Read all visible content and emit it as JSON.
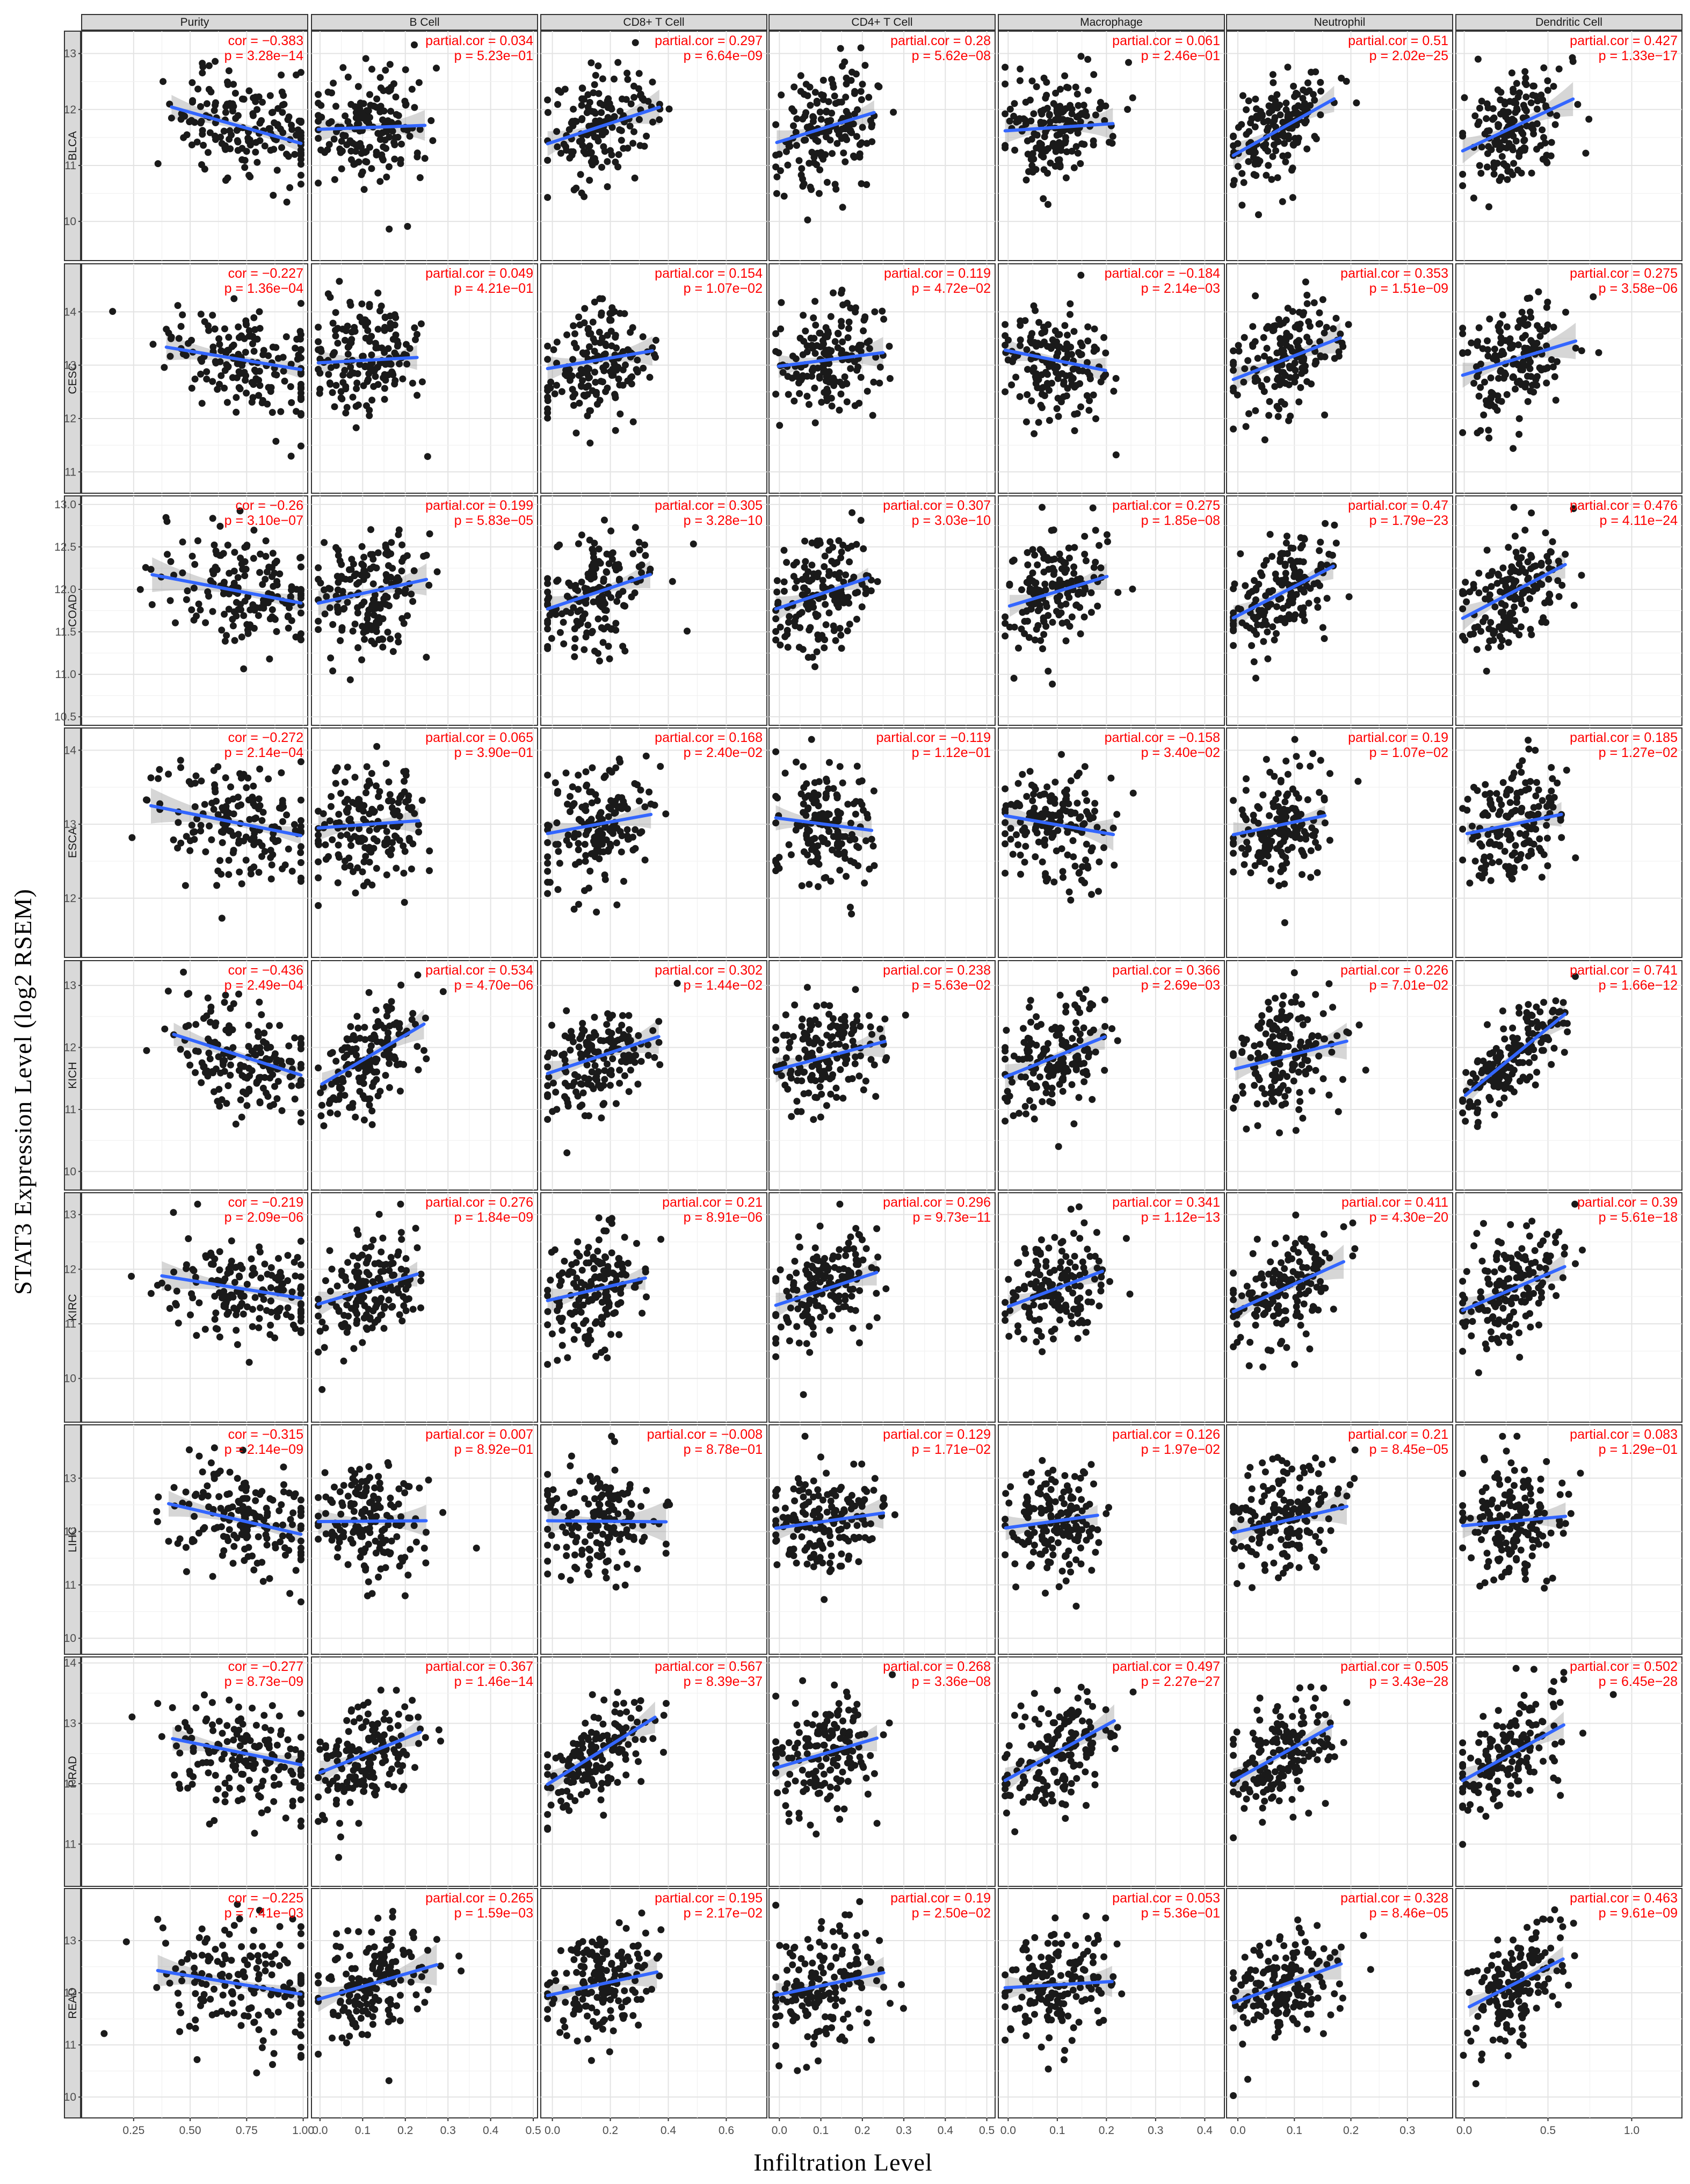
{
  "figure": {
    "xlabel": "Infiltration Level",
    "ylabel": "STAT3 Expression Level (log2 RSEM)"
  },
  "colors": {
    "points": "#1a1a1a",
    "fit_line": "#3366ff",
    "confidence_band": "#999999",
    "stats_text": "#ff0000",
    "strip_fill": "#d9d9d9"
  },
  "chart_data": {
    "type": "scatter",
    "grid": true,
    "columns": [
      {
        "name": "Purity",
        "xlim": [
          0.02,
          1.02
        ],
        "xticks": [
          0.25,
          0.5,
          0.75,
          1.0
        ],
        "xtick_labels": [
          "0.25",
          "0.50",
          "0.75",
          "1.00"
        ]
      },
      {
        "name": "B Cell",
        "xlim": [
          -0.02,
          0.51
        ],
        "xticks": [
          0.0,
          0.1,
          0.2,
          0.3,
          0.4,
          0.5
        ],
        "xtick_labels": [
          "0.0",
          "0.1",
          "0.2",
          "0.3",
          "0.4",
          "0.5"
        ]
      },
      {
        "name": "CD8+ T Cell",
        "xlim": [
          -0.04,
          0.74
        ],
        "xticks": [
          0.0,
          0.2,
          0.4,
          0.6
        ],
        "xtick_labels": [
          "0.0",
          "0.2",
          "0.4",
          "0.6"
        ]
      },
      {
        "name": "CD4+ T Cell",
        "xlim": [
          -0.025,
          0.52
        ],
        "xticks": [
          0.0,
          0.1,
          0.2,
          0.3,
          0.4,
          0.5
        ],
        "xtick_labels": [
          "0.0",
          "0.1",
          "0.2",
          "0.3",
          "0.4",
          "0.5"
        ]
      },
      {
        "name": "Macrophage",
        "xlim": [
          -0.02,
          0.44
        ],
        "xticks": [
          0.0,
          0.1,
          0.2,
          0.3,
          0.4
        ],
        "xtick_labels": [
          "0.0",
          "0.1",
          "0.2",
          "0.3",
          "0.4"
        ]
      },
      {
        "name": "Neutrophil",
        "xlim": [
          -0.02,
          0.38
        ],
        "xticks": [
          0.0,
          0.1,
          0.2,
          0.3
        ],
        "xtick_labels": [
          "0.0",
          "0.1",
          "0.2",
          "0.3"
        ]
      },
      {
        "name": "Dendritic Cell",
        "xlim": [
          -0.05,
          1.3
        ],
        "xticks": [
          0.0,
          0.5,
          1.0
        ],
        "xtick_labels": [
          "0.0",
          "0.5",
          "1.0"
        ]
      }
    ],
    "rows": [
      {
        "name": "BLCA",
        "ylim": [
          9.3,
          13.4
        ],
        "yticks": [
          10,
          11,
          12,
          13
        ],
        "ytick_labels": [
          "10",
          "11",
          "12",
          "13"
        ],
        "stats": [
          {
            "label": "cor = −0.383",
            "p": "p = 3.28e−14",
            "r": -0.383
          },
          {
            "label": "partial.cor = 0.034",
            "p": "p = 5.23e−01",
            "r": 0.034
          },
          {
            "label": "partial.cor = 0.297",
            "p": "p = 6.64e−09",
            "r": 0.297
          },
          {
            "label": "partial.cor = 0.28",
            "p": "p = 5.62e−08",
            "r": 0.28
          },
          {
            "label": "partial.cor = 0.061",
            "p": "p = 2.46e−01",
            "r": 0.061
          },
          {
            "label": "partial.cor = 0.51",
            "p": "p = 2.02e−25",
            "r": 0.51
          },
          {
            "label": "partial.cor = 0.427",
            "p": "p = 1.33e−17",
            "r": 0.427
          }
        ]
      },
      {
        "name": "CESC",
        "ylim": [
          10.6,
          14.9
        ],
        "yticks": [
          11,
          12,
          13,
          14
        ],
        "ytick_labels": [
          "11",
          "12",
          "13",
          "14"
        ],
        "stats": [
          {
            "label": "cor = −0.227",
            "p": "p = 1.36e−04",
            "r": -0.227
          },
          {
            "label": "partial.cor = 0.049",
            "p": "p = 4.21e−01",
            "r": 0.049
          },
          {
            "label": "partial.cor = 0.154",
            "p": "p = 1.07e−02",
            "r": 0.154
          },
          {
            "label": "partial.cor = 0.119",
            "p": "p = 4.72e−02",
            "r": 0.119
          },
          {
            "label": "partial.cor = −0.184",
            "p": "p = 2.14e−03",
            "r": -0.184
          },
          {
            "label": "partial.cor = 0.353",
            "p": "p = 1.51e−09",
            "r": 0.353
          },
          {
            "label": "partial.cor = 0.275",
            "p": "p = 3.58e−06",
            "r": 0.275
          }
        ]
      },
      {
        "name": "COAD",
        "ylim": [
          10.4,
          13.1
        ],
        "yticks": [
          10.5,
          11.0,
          11.5,
          12.0,
          12.5,
          13.0
        ],
        "ytick_labels": [
          "10.5",
          "11.0",
          "11.5",
          "12.0",
          "12.5",
          "13.0"
        ],
        "stats": [
          {
            "label": "cor = −0.26",
            "p": "p = 3.10e−07",
            "r": -0.26
          },
          {
            "label": "partial.cor = 0.199",
            "p": "p = 5.83e−05",
            "r": 0.199
          },
          {
            "label": "partial.cor = 0.305",
            "p": "p = 3.28e−10",
            "r": 0.305
          },
          {
            "label": "partial.cor = 0.307",
            "p": "p = 3.03e−10",
            "r": 0.307
          },
          {
            "label": "partial.cor = 0.275",
            "p": "p = 1.85e−08",
            "r": 0.275
          },
          {
            "label": "partial.cor = 0.47",
            "p": "p = 1.79e−23",
            "r": 0.47
          },
          {
            "label": "partial.cor = 0.476",
            "p": "p = 4.11e−24",
            "r": 0.476
          }
        ]
      },
      {
        "name": "ESCA",
        "ylim": [
          11.2,
          14.3
        ],
        "yticks": [
          12,
          13,
          14
        ],
        "ytick_labels": [
          "12",
          "13",
          "14"
        ],
        "stats": [
          {
            "label": "cor = −0.272",
            "p": "p = 2.14e−04",
            "r": -0.272
          },
          {
            "label": "partial.cor = 0.065",
            "p": "p = 3.90e−01",
            "r": 0.065
          },
          {
            "label": "partial.cor = 0.168",
            "p": "p = 2.40e−02",
            "r": 0.168
          },
          {
            "label": "partial.cor = −0.119",
            "p": "p = 1.12e−01",
            "r": -0.119
          },
          {
            "label": "partial.cor = −0.158",
            "p": "p = 3.40e−02",
            "r": -0.158
          },
          {
            "label": "partial.cor = 0.19",
            "p": "p = 1.07e−02",
            "r": 0.19
          },
          {
            "label": "partial.cor = 0.185",
            "p": "p = 1.27e−02",
            "r": 0.185
          }
        ]
      },
      {
        "name": "KICH",
        "ylim": [
          9.7,
          13.4
        ],
        "yticks": [
          10,
          11,
          12,
          13
        ],
        "ytick_labels": [
          "10",
          "11",
          "12",
          "13"
        ],
        "stats": [
          {
            "label": "cor = −0.436",
            "p": "p = 2.49e−04",
            "r": -0.436
          },
          {
            "label": "partial.cor = 0.534",
            "p": "p = 4.70e−06",
            "r": 0.534
          },
          {
            "label": "partial.cor = 0.302",
            "p": "p = 1.44e−02",
            "r": 0.302
          },
          {
            "label": "partial.cor = 0.238",
            "p": "p = 5.63e−02",
            "r": 0.238
          },
          {
            "label": "partial.cor = 0.366",
            "p": "p = 2.69e−03",
            "r": 0.366
          },
          {
            "label": "partial.cor = 0.226",
            "p": "p = 7.01e−02",
            "r": 0.226
          },
          {
            "label": "partial.cor = 0.741",
            "p": "p = 1.66e−12",
            "r": 0.741
          }
        ]
      },
      {
        "name": "KIRC",
        "ylim": [
          9.2,
          13.4
        ],
        "yticks": [
          10,
          11,
          12,
          13
        ],
        "ytick_labels": [
          "10",
          "11",
          "12",
          "13"
        ],
        "stats": [
          {
            "label": "cor = −0.219",
            "p": "p = 2.09e−06",
            "r": -0.219
          },
          {
            "label": "partial.cor = 0.276",
            "p": "p = 1.84e−09",
            "r": 0.276
          },
          {
            "label": "partial.cor = 0.21",
            "p": "p = 8.91e−06",
            "r": 0.21
          },
          {
            "label": "partial.cor = 0.296",
            "p": "p = 9.73e−11",
            "r": 0.296
          },
          {
            "label": "partial.cor = 0.341",
            "p": "p = 1.12e−13",
            "r": 0.341
          },
          {
            "label": "partial.cor = 0.411",
            "p": "p = 4.30e−20",
            "r": 0.411
          },
          {
            "label": "partial.cor = 0.39",
            "p": "p = 5.61e−18",
            "r": 0.39
          }
        ]
      },
      {
        "name": "LIHC",
        "ylim": [
          9.7,
          14.0
        ],
        "yticks": [
          10,
          11,
          12,
          13
        ],
        "ytick_labels": [
          "10",
          "11",
          "12",
          "13"
        ],
        "stats": [
          {
            "label": "cor = −0.315",
            "p": "p = 2.14e−09",
            "r": -0.315
          },
          {
            "label": "partial.cor = 0.007",
            "p": "p = 8.92e−01",
            "r": 0.007
          },
          {
            "label": "partial.cor = −0.008",
            "p": "p = 8.78e−01",
            "r": -0.008
          },
          {
            "label": "partial.cor = 0.129",
            "p": "p = 1.71e−02",
            "r": 0.129
          },
          {
            "label": "partial.cor = 0.126",
            "p": "p = 1.97e−02",
            "r": 0.126
          },
          {
            "label": "partial.cor = 0.21",
            "p": "p = 8.45e−05",
            "r": 0.21
          },
          {
            "label": "partial.cor = 0.083",
            "p": "p = 1.29e−01",
            "r": 0.083
          }
        ]
      },
      {
        "name": "PRAD",
        "ylim": [
          10.3,
          14.1
        ],
        "yticks": [
          11,
          12,
          13,
          14
        ],
        "ytick_labels": [
          "11",
          "12",
          "13",
          "14"
        ],
        "stats": [
          {
            "label": "cor = −0.277",
            "p": "p = 8.73e−09",
            "r": -0.277
          },
          {
            "label": "partial.cor = 0.367",
            "p": "p = 1.46e−14",
            "r": 0.367
          },
          {
            "label": "partial.cor = 0.567",
            "p": "p = 8.39e−37",
            "r": 0.567
          },
          {
            "label": "partial.cor = 0.268",
            "p": "p = 3.36e−08",
            "r": 0.268
          },
          {
            "label": "partial.cor = 0.497",
            "p": "p = 2.27e−27",
            "r": 0.497
          },
          {
            "label": "partial.cor = 0.505",
            "p": "p = 3.43e−28",
            "r": 0.505
          },
          {
            "label": "partial.cor = 0.502",
            "p": "p = 6.45e−28",
            "r": 0.502
          }
        ]
      },
      {
        "name": "READ",
        "ylim": [
          9.6,
          14.0
        ],
        "yticks": [
          10,
          11,
          12,
          13
        ],
        "ytick_labels": [
          "10",
          "11",
          "12",
          "13"
        ],
        "stats": [
          {
            "label": "cor = −0.225",
            "p": "p = 7.41e−03",
            "r": -0.225
          },
          {
            "label": "partial.cor = 0.265",
            "p": "p = 1.59e−03",
            "r": 0.265
          },
          {
            "label": "partial.cor = 0.195",
            "p": "p = 2.17e−02",
            "r": 0.195
          },
          {
            "label": "partial.cor = 0.19",
            "p": "p = 2.50e−02",
            "r": 0.19
          },
          {
            "label": "partial.cor = 0.053",
            "p": "p = 5.36e−01",
            "r": 0.053
          },
          {
            "label": "partial.cor = 0.328",
            "p": "p = 8.46e−05",
            "r": 0.328
          },
          {
            "label": "partial.cor = 0.463",
            "p": "p = 9.61e−09",
            "r": 0.463
          }
        ]
      }
    ]
  }
}
